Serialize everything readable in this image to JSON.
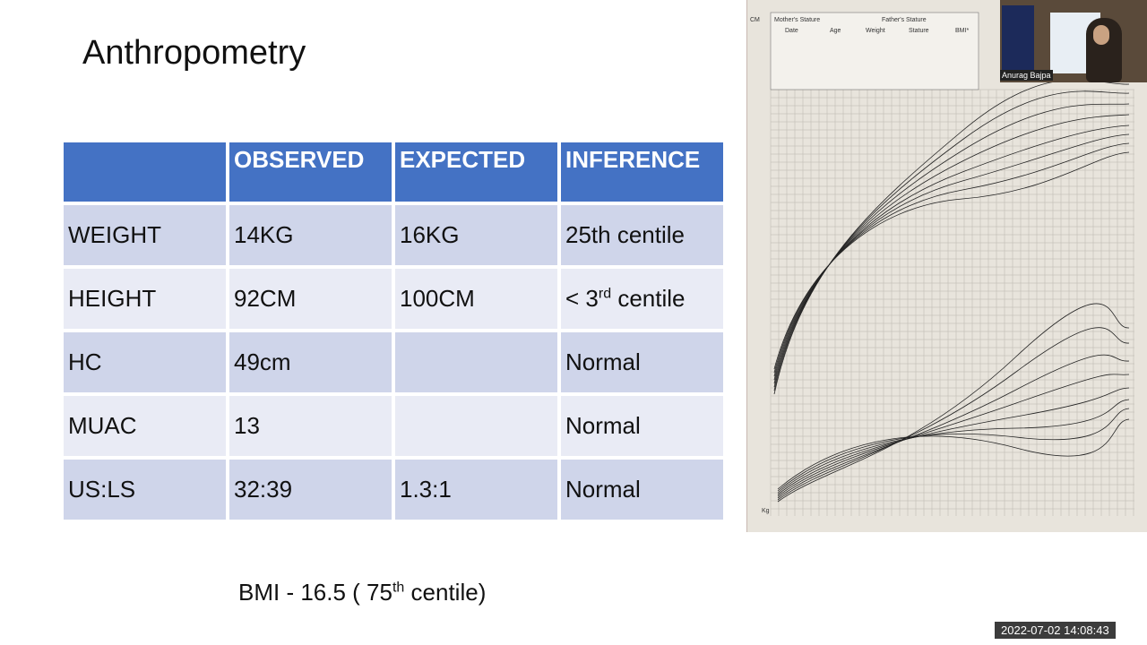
{
  "slide": {
    "title": "Anthropometry",
    "table": {
      "headers": [
        "",
        "OBSERVED",
        "EXPECTED",
        "INFERENCE"
      ],
      "rows": [
        {
          "label": "WEIGHT",
          "observed": "14KG",
          "expected": "16KG",
          "inference": "25th centile",
          "inference_sup": ""
        },
        {
          "label": "HEIGHT",
          "observed": "92CM",
          "expected": "100CM",
          "inference": "< 3",
          "inference_sup": "rd",
          "inference_suffix": " centile"
        },
        {
          "label": "HC",
          "observed": "49cm",
          "expected": "",
          "inference": "Normal",
          "inference_sup": ""
        },
        {
          "label": "MUAC",
          "observed": "13",
          "expected": "",
          "inference": "Normal",
          "inference_sup": ""
        },
        {
          "label": "US:LS",
          "observed": "32:39",
          "expected": "1.3:1",
          "inference": "Normal",
          "inference_sup": ""
        }
      ]
    },
    "bmi": {
      "prefix": "BMI - 16.5  ( 75",
      "sup": "th",
      "suffix": " centile)"
    }
  },
  "growth_chart": {
    "header_left": "Mother's Stature",
    "header_right": "Father's Stature",
    "columns": [
      "Date",
      "Age",
      "Weight",
      "Stature",
      "BMI*"
    ],
    "unit_top": "CM",
    "unit_bottom": "Kg"
  },
  "video": {
    "participant_name": "Anurag Bajpa"
  },
  "timestamp": "2022-07-02  14:08:43"
}
